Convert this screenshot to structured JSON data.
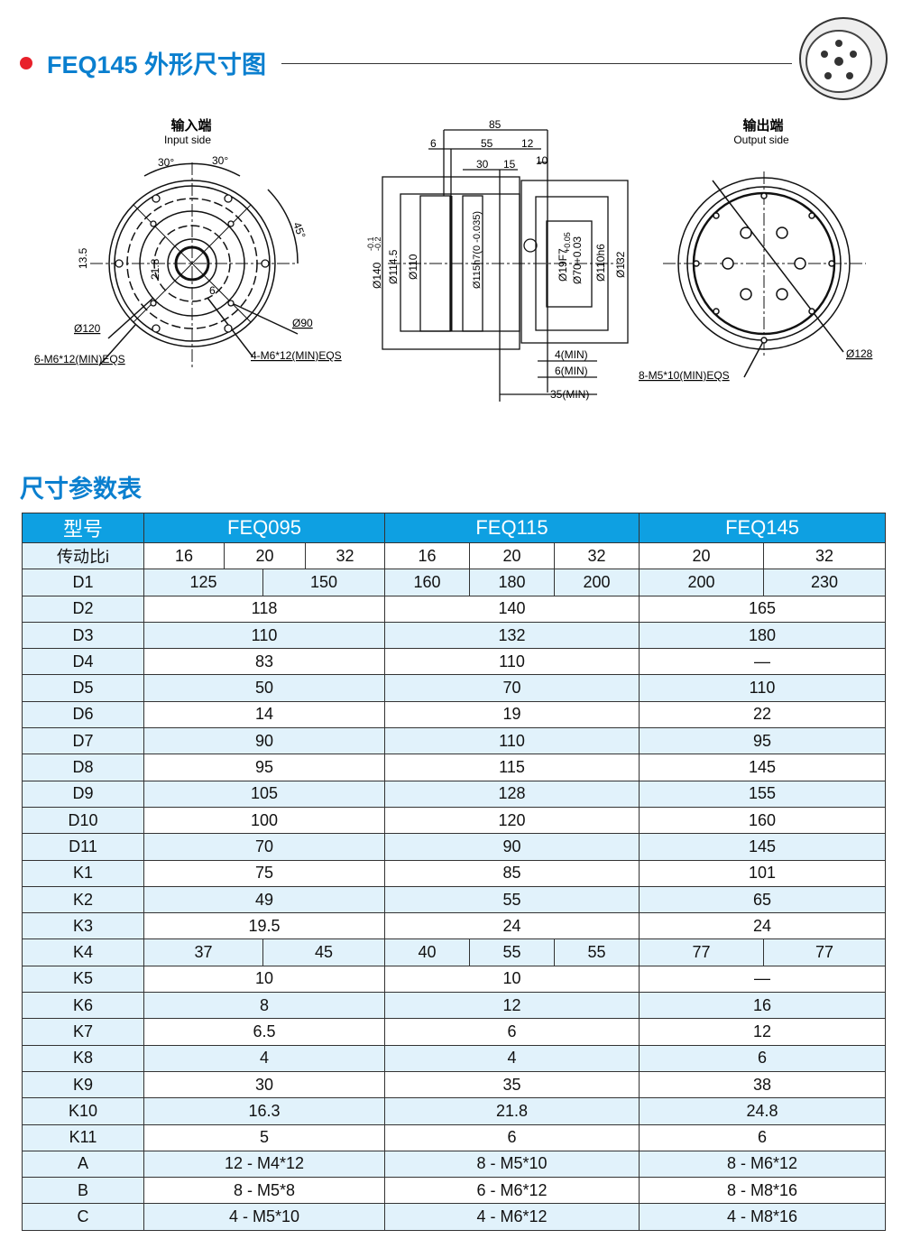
{
  "header": {
    "title": "FEQ145 外形尺寸图",
    "accent": "#0a7fcf",
    "bullet_color": "#e8202a"
  },
  "drawing": {
    "input": {
      "title_cn": "输入端",
      "title_en": "Input side",
      "labels": [
        "30°",
        "30°",
        "45°",
        "13.5",
        "21.8",
        "6",
        "Ø120",
        "Ø90",
        "6-M6*12(MIN)EQS",
        "4-M6*12(MIN)EQS"
      ]
    },
    "side": {
      "labels": [
        "85",
        "6",
        "55",
        "12",
        "30",
        "15",
        "10",
        "Ø140",
        "-0.1",
        "-0.2",
        "Ø114.5",
        "Ø110",
        "Ø115h7(0 -0.035)",
        "Ø19F7",
        "+0.05",
        "Ø70+0.03",
        "Ø110h6",
        "Ø132",
        "4(MIN)",
        "6(MIN)",
        "35(MIN)"
      ]
    },
    "output": {
      "title_cn": "输出端",
      "title_en": "Output side",
      "labels": [
        "8-M5*10(MIN)EQS",
        "Ø128"
      ]
    }
  },
  "table_title": "尺寸参数表",
  "table": {
    "header_color": "#0ea0e2",
    "row_color": "#e1f2fb",
    "rows": [
      {
        "label": "型号",
        "cells": [
          {
            "v": "FEQ095",
            "s": 4
          },
          {
            "v": "FEQ115",
            "s": 3
          },
          {
            "v": "FEQ145",
            "s": 2
          }
        ]
      },
      {
        "label": "传动比i",
        "cells": [
          {
            "v": "16",
            "s": 1
          },
          {
            "v": "20",
            "s": 2
          },
          {
            "v": "32",
            "s": 1
          },
          {
            "v": "16",
            "s": 1
          },
          {
            "v": "20",
            "s": 1
          },
          {
            "v": "32",
            "s": 1
          },
          {
            "v": "20",
            "s": 1
          },
          {
            "v": "32",
            "s": 1
          }
        ]
      },
      {
        "label": "D1",
        "cells": [
          {
            "v": "125",
            "s": 2
          },
          {
            "v": "150",
            "s": 2
          },
          {
            "v": "160",
            "s": 1
          },
          {
            "v": "180",
            "s": 1
          },
          {
            "v": "200",
            "s": 1
          },
          {
            "v": "200",
            "s": 1
          },
          {
            "v": "230",
            "s": 1
          }
        ]
      },
      {
        "label": "D2",
        "cells": [
          {
            "v": "118",
            "s": 4
          },
          {
            "v": "140",
            "s": 3
          },
          {
            "v": "165",
            "s": 2
          }
        ]
      },
      {
        "label": "D3",
        "cells": [
          {
            "v": "110",
            "s": 4
          },
          {
            "v": "132",
            "s": 3
          },
          {
            "v": "180",
            "s": 2
          }
        ]
      },
      {
        "label": "D4",
        "cells": [
          {
            "v": "83",
            "s": 4
          },
          {
            "v": "110",
            "s": 3
          },
          {
            "v": "—",
            "s": 2
          }
        ]
      },
      {
        "label": "D5",
        "cells": [
          {
            "v": "50",
            "s": 4
          },
          {
            "v": "70",
            "s": 3
          },
          {
            "v": "110",
            "s": 2
          }
        ]
      },
      {
        "label": "D6",
        "cells": [
          {
            "v": "14",
            "s": 4
          },
          {
            "v": "19",
            "s": 3
          },
          {
            "v": "22",
            "s": 2
          }
        ]
      },
      {
        "label": "D7",
        "cells": [
          {
            "v": "90",
            "s": 4
          },
          {
            "v": "110",
            "s": 3
          },
          {
            "v": "95",
            "s": 2
          }
        ]
      },
      {
        "label": "D8",
        "cells": [
          {
            "v": "95",
            "s": 4
          },
          {
            "v": "115",
            "s": 3
          },
          {
            "v": "145",
            "s": 2
          }
        ]
      },
      {
        "label": "D9",
        "cells": [
          {
            "v": "105",
            "s": 4
          },
          {
            "v": "128",
            "s": 3
          },
          {
            "v": "155",
            "s": 2
          }
        ]
      },
      {
        "label": "D10",
        "cells": [
          {
            "v": "100",
            "s": 4
          },
          {
            "v": "120",
            "s": 3
          },
          {
            "v": "160",
            "s": 2
          }
        ]
      },
      {
        "label": "D11",
        "cells": [
          {
            "v": "70",
            "s": 4
          },
          {
            "v": "90",
            "s": 3
          },
          {
            "v": "145",
            "s": 2
          }
        ]
      },
      {
        "label": "K1",
        "cells": [
          {
            "v": "75",
            "s": 4
          },
          {
            "v": "85",
            "s": 3
          },
          {
            "v": "101",
            "s": 2
          }
        ]
      },
      {
        "label": "K2",
        "cells": [
          {
            "v": "49",
            "s": 4
          },
          {
            "v": "55",
            "s": 3
          },
          {
            "v": "65",
            "s": 2
          }
        ]
      },
      {
        "label": "K3",
        "cells": [
          {
            "v": "19.5",
            "s": 4
          },
          {
            "v": "24",
            "s": 3
          },
          {
            "v": "24",
            "s": 2
          }
        ]
      },
      {
        "label": "K4",
        "cells": [
          {
            "v": "37",
            "s": 2
          },
          {
            "v": "45",
            "s": 2
          },
          {
            "v": "40",
            "s": 1
          },
          {
            "v": "55",
            "s": 1
          },
          {
            "v": "55",
            "s": 1
          },
          {
            "v": "77",
            "s": 1
          },
          {
            "v": "77",
            "s": 1
          }
        ]
      },
      {
        "label": "K5",
        "cells": [
          {
            "v": "10",
            "s": 4
          },
          {
            "v": "10",
            "s": 3
          },
          {
            "v": "—",
            "s": 2
          }
        ]
      },
      {
        "label": "K6",
        "cells": [
          {
            "v": "8",
            "s": 4
          },
          {
            "v": "12",
            "s": 3
          },
          {
            "v": "16",
            "s": 2
          }
        ]
      },
      {
        "label": "K7",
        "cells": [
          {
            "v": "6.5",
            "s": 4
          },
          {
            "v": "6",
            "s": 3
          },
          {
            "v": "12",
            "s": 2
          }
        ]
      },
      {
        "label": "K8",
        "cells": [
          {
            "v": "4",
            "s": 4
          },
          {
            "v": "4",
            "s": 3
          },
          {
            "v": "6",
            "s": 2
          }
        ]
      },
      {
        "label": "K9",
        "cells": [
          {
            "v": "30",
            "s": 4
          },
          {
            "v": "35",
            "s": 3
          },
          {
            "v": "38",
            "s": 2
          }
        ]
      },
      {
        "label": "K10",
        "cells": [
          {
            "v": "16.3",
            "s": 4
          },
          {
            "v": "21.8",
            "s": 3
          },
          {
            "v": "24.8",
            "s": 2
          }
        ]
      },
      {
        "label": "K11",
        "cells": [
          {
            "v": "5",
            "s": 4
          },
          {
            "v": "6",
            "s": 3
          },
          {
            "v": "6",
            "s": 2
          }
        ]
      },
      {
        "label": "A",
        "cells": [
          {
            "v": "12 - M4*12",
            "s": 4
          },
          {
            "v": "8 - M5*10",
            "s": 3
          },
          {
            "v": "8 - M6*12",
            "s": 2
          }
        ]
      },
      {
        "label": "B",
        "cells": [
          {
            "v": "8 - M5*8",
            "s": 4
          },
          {
            "v": "6 - M6*12",
            "s": 3
          },
          {
            "v": "8 - M8*16",
            "s": 2
          }
        ]
      },
      {
        "label": "C",
        "cells": [
          {
            "v": "4 - M5*10",
            "s": 4
          },
          {
            "v": "4 - M6*12",
            "s": 3
          },
          {
            "v": "4 - M8*16",
            "s": 2
          }
        ]
      }
    ]
  }
}
